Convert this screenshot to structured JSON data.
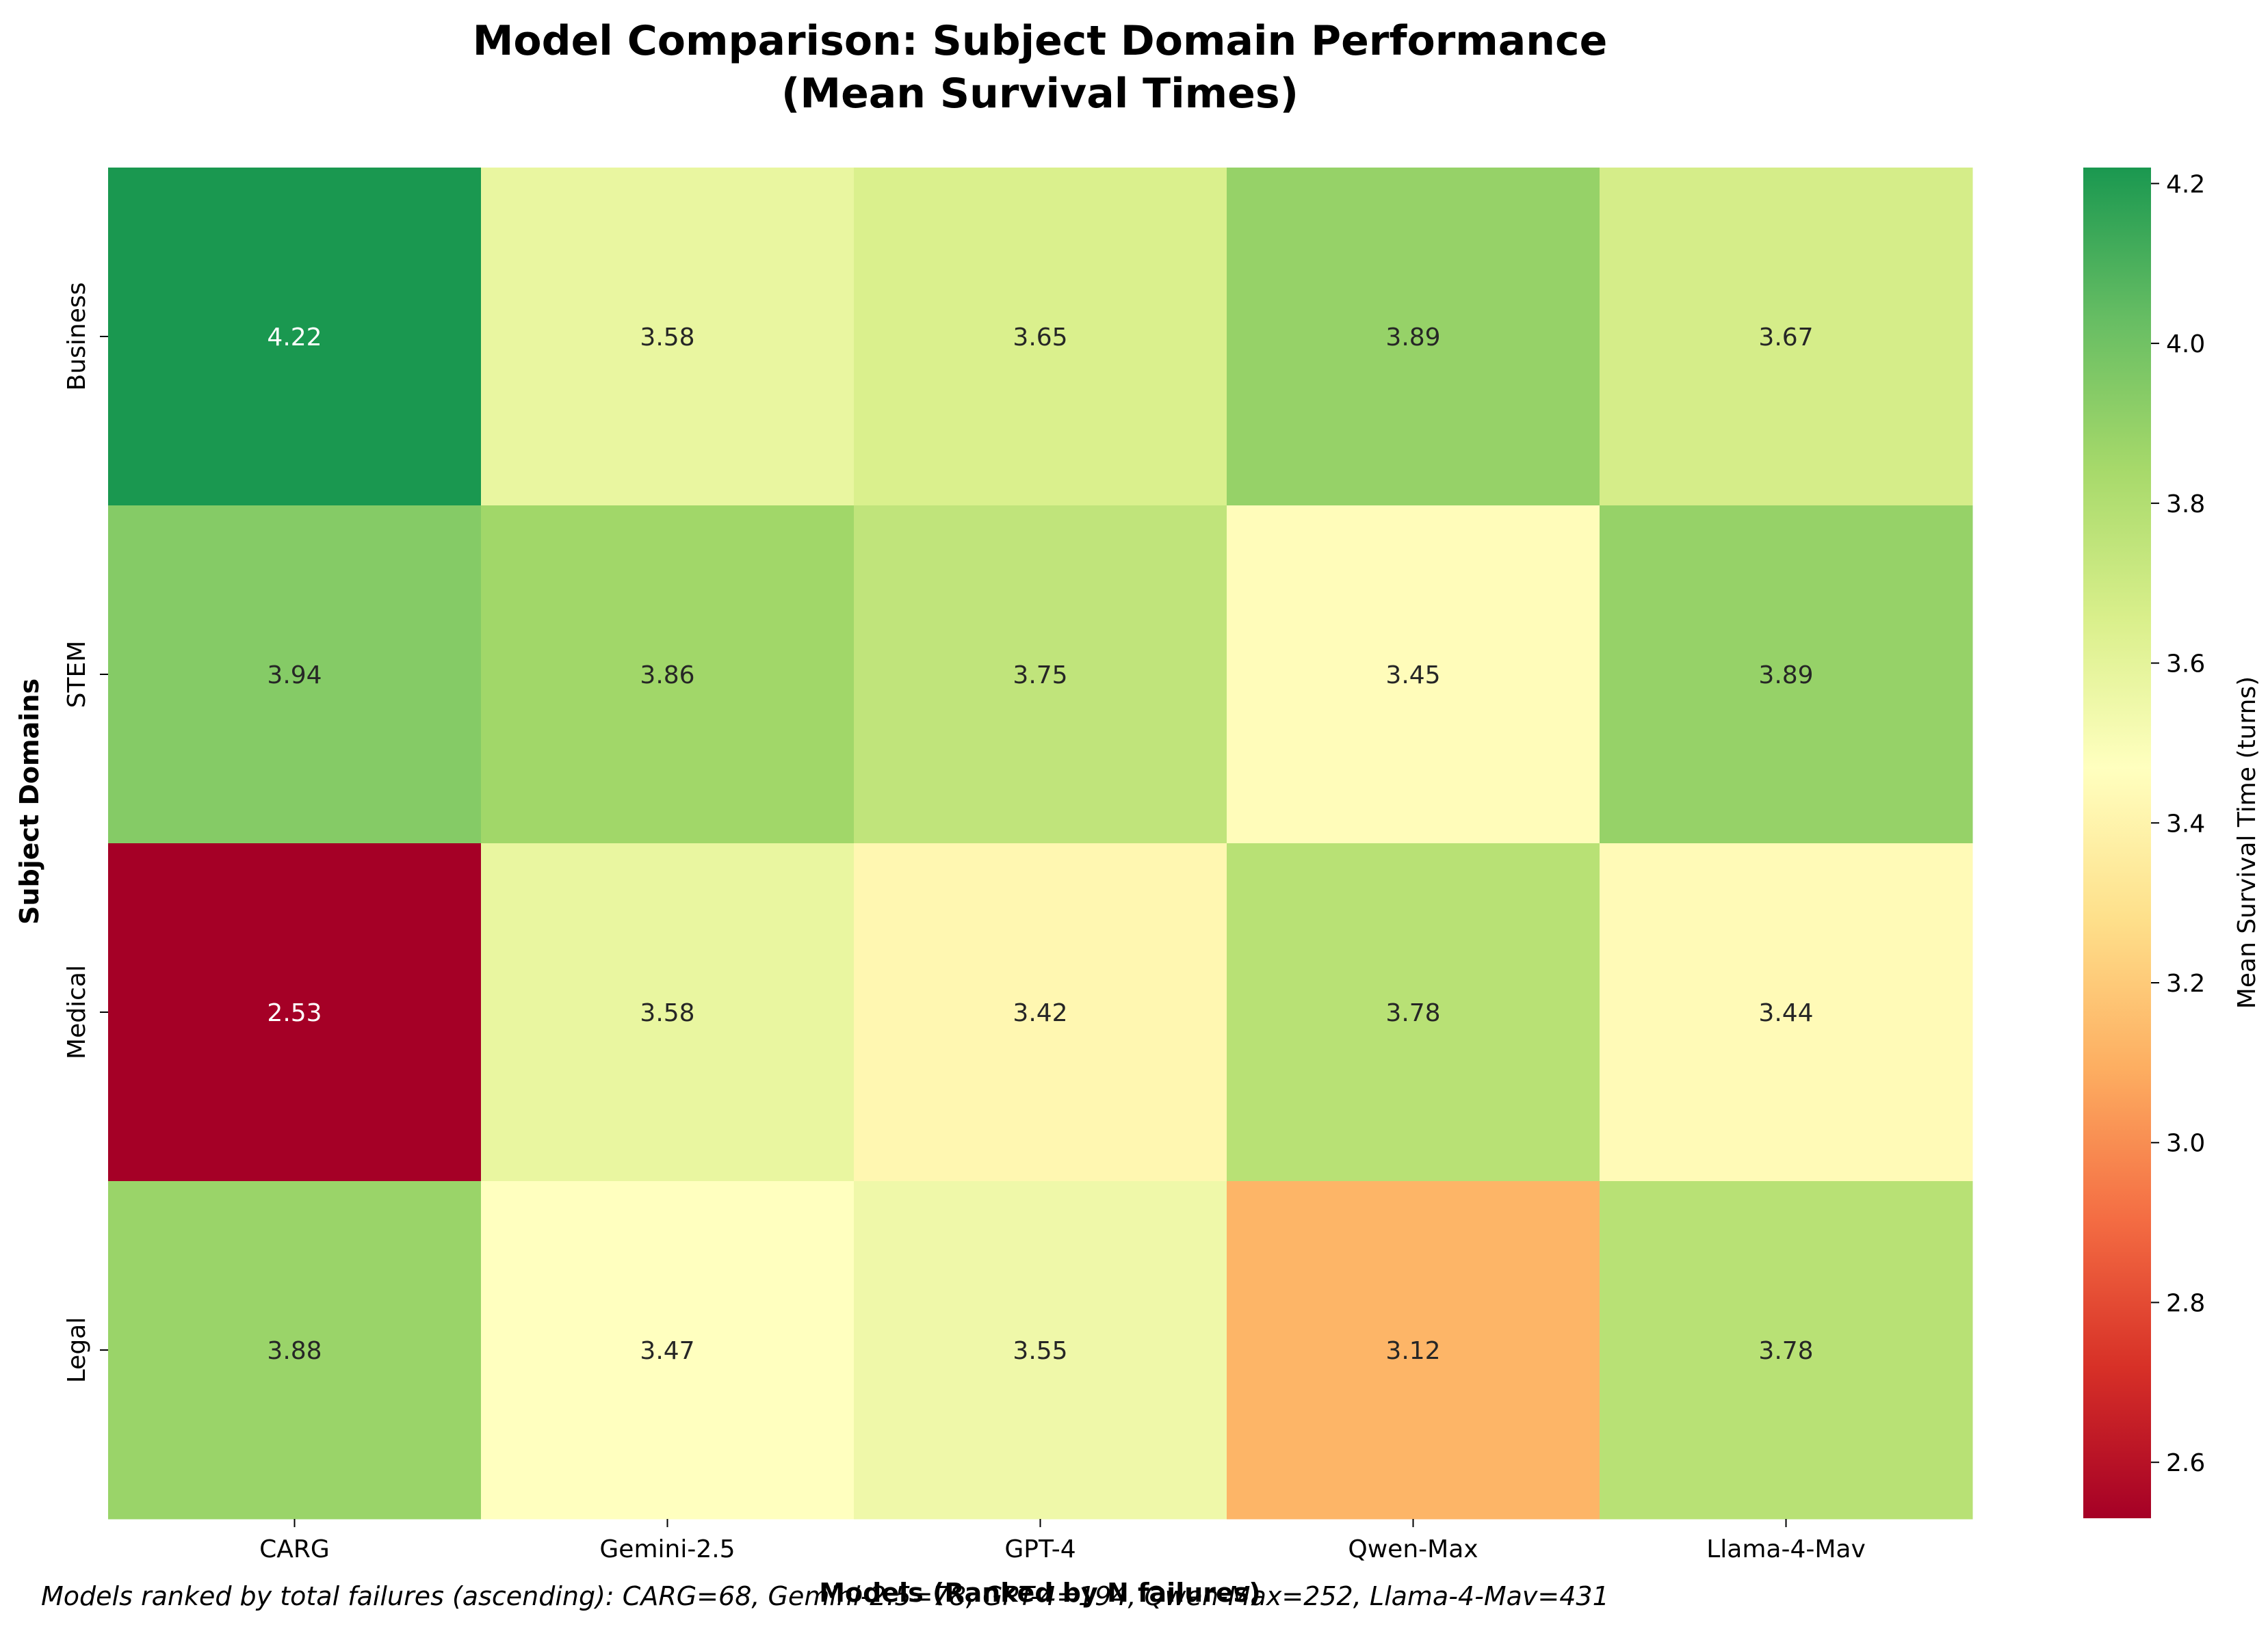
{
  "chart_data": {
    "type": "heatmap",
    "title": "Model Comparison: Subject Domain Performance",
    "subtitle": "(Mean Survival Times)",
    "xlabel": "Models (Ranked by N failures)",
    "ylabel": "Subject Domains",
    "x_categories": [
      "CARG",
      "Gemini-2.5",
      "GPT-4",
      "Qwen-Max",
      "Llama-4-Mav"
    ],
    "y_categories": [
      "Business",
      "STEM",
      "Medical",
      "Legal"
    ],
    "values": [
      [
        4.22,
        3.58,
        3.65,
        3.89,
        3.67
      ],
      [
        3.94,
        3.86,
        3.75,
        3.45,
        3.89
      ],
      [
        2.53,
        3.58,
        3.42,
        3.78,
        3.44
      ],
      [
        3.88,
        3.47,
        3.55,
        3.12,
        3.78
      ]
    ],
    "value_labels": [
      [
        "4.22",
        "3.58",
        "3.65",
        "3.89",
        "3.67"
      ],
      [
        "3.94",
        "3.86",
        "3.75",
        "3.45",
        "3.89"
      ],
      [
        "2.53",
        "3.58",
        "3.42",
        "3.78",
        "3.44"
      ],
      [
        "3.88",
        "3.47",
        "3.55",
        "3.12",
        "3.78"
      ]
    ],
    "colorbar": {
      "label": "Mean Survival Time (turns)",
      "vmin": 2.53,
      "vmax": 4.22,
      "ticks": [
        2.6,
        2.8,
        3.0,
        3.2,
        3.4,
        3.6,
        3.8,
        4.0,
        4.2
      ],
      "tick_labels": [
        "2.6",
        "2.8",
        "3.0",
        "3.2",
        "3.4",
        "3.6",
        "3.8",
        "4.0",
        "4.2"
      ],
      "colormap": "RdYlGn",
      "colormap_stops": [
        "#a50026",
        "#d73027",
        "#f46d43",
        "#fdae61",
        "#fee08b",
        "#ffffbf",
        "#d9ef8b",
        "#a6d96a",
        "#66bd63",
        "#1a9850"
      ]
    },
    "footnote": "Models ranked by total failures (ascending): CARG=68, Gemini-2.5=78, GPT-4=194, Qwen-Max=252, Llama-4-Mav=431",
    "grid": false
  }
}
